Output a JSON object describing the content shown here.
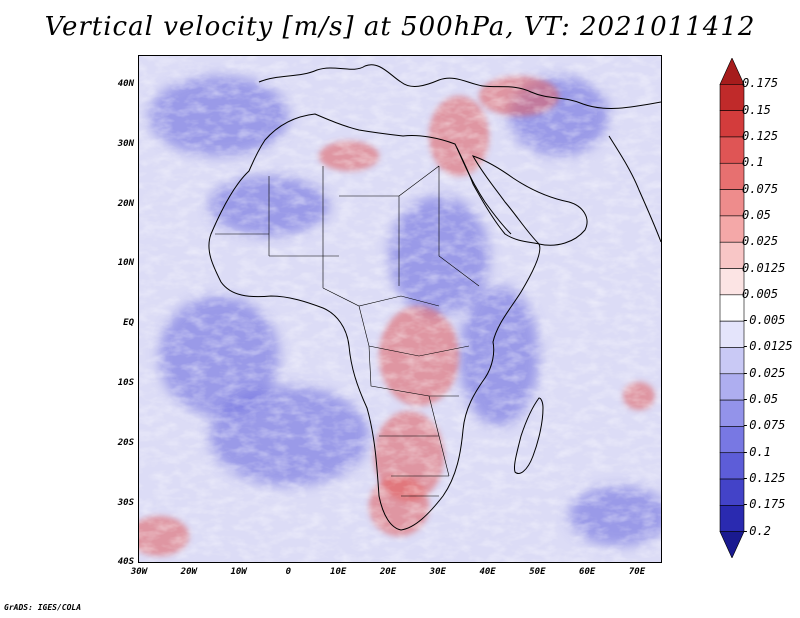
{
  "title": "Vertical velocity [m/s] at 500hPa, VT: 2021011412",
  "credit": "GrADS: IGES/COLA",
  "map": {
    "lat_labels": [
      "40N",
      "30N",
      "20N",
      "10N",
      "EQ",
      "10S",
      "20S",
      "30S",
      "40S"
    ],
    "lon_labels": [
      "30W",
      "20W",
      "10W",
      "0",
      "10E",
      "20E",
      "30E",
      "40E",
      "50E",
      "60E",
      "70E"
    ]
  },
  "colorbar": {
    "labels": [
      "0.175",
      "0.15",
      "0.125",
      "0.1",
      "0.075",
      "0.05",
      "0.025",
      "0.0125",
      "0.005",
      "-0.005",
      "-0.0125",
      "-0.025",
      "-0.05",
      "-0.075",
      "-0.1",
      "-0.125",
      "-0.175",
      "-0.2"
    ],
    "colors": [
      "#a61c1c",
      "#c02a2a",
      "#d33c3c",
      "#df5555",
      "#e77070",
      "#ee8c8c",
      "#f4a8a8",
      "#f8c6c6",
      "#fce4e4",
      "#ffffff",
      "#e4e4fb",
      "#c9c9f5",
      "#aeaef0",
      "#9393ea",
      "#7878e3",
      "#5d5dd8",
      "#4343c8",
      "#2a2ab0",
      "#1a1a90"
    ]
  },
  "field_colors": {
    "background": "#dcdcf6",
    "ascent": "#e25c5c",
    "descent": "#6e6ee0",
    "coast": "#000000"
  }
}
